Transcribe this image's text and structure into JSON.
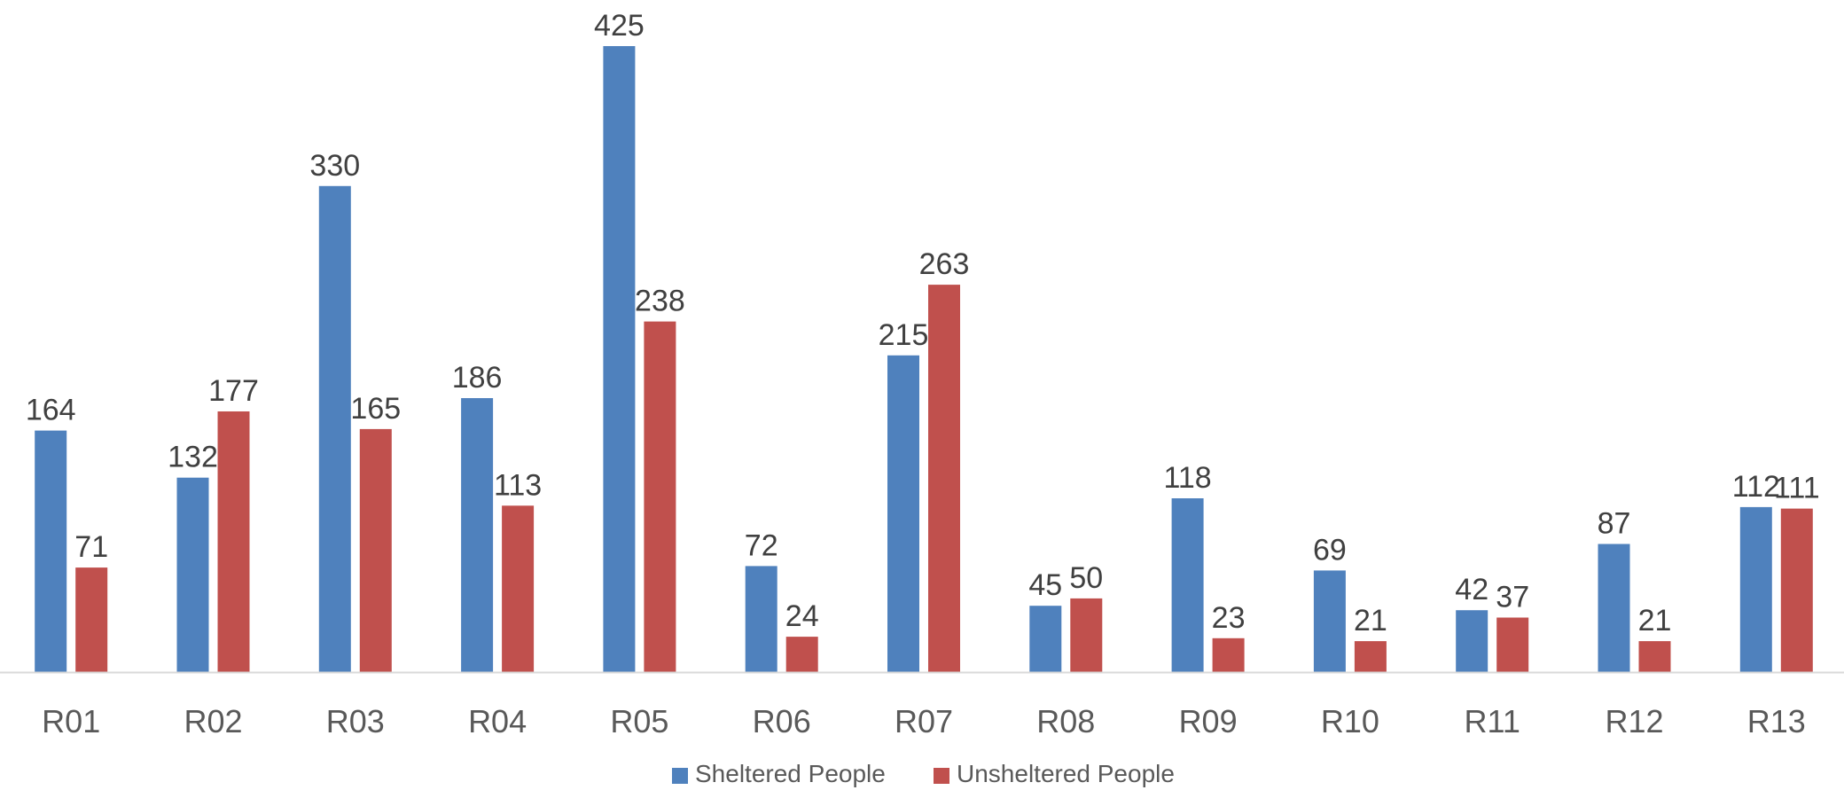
{
  "chart_data": {
    "type": "bar",
    "title": "",
    "xlabel": "",
    "ylabel": "",
    "ylim": [
      0,
      425
    ],
    "grid": false,
    "legend_position": "bottom",
    "categories": [
      "R01",
      "R02",
      "R03",
      "R04",
      "R05",
      "R06",
      "R07",
      "R08",
      "R09",
      "R10",
      "R11",
      "R12",
      "R13"
    ],
    "series": [
      {
        "name": "Sheltered People",
        "color": "#4F81BD",
        "values": [
          164,
          132,
          330,
          186,
          425,
          72,
          215,
          45,
          118,
          69,
          42,
          87,
          112
        ]
      },
      {
        "name": "Unsheltered People",
        "color": "#C0504D",
        "values": [
          71,
          177,
          165,
          113,
          238,
          24,
          263,
          50,
          23,
          21,
          37,
          21,
          111
        ]
      }
    ],
    "axis_color": "#D9D9D9"
  }
}
